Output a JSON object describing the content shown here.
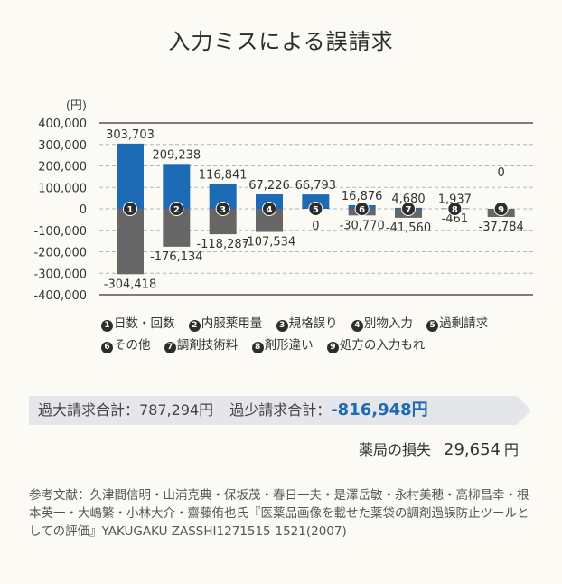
{
  "title": "入力ミスによる誤請求",
  "chart_data": {
    "type": "bar",
    "unit_label": "(円)",
    "ylim": [
      -400000,
      400000
    ],
    "y_ticks": [
      400000,
      300000,
      200000,
      100000,
      0,
      -100000,
      -200000,
      -300000,
      -400000
    ],
    "y_tick_labels": [
      "400,000",
      "300,000",
      "200,000",
      "100,000",
      "0",
      "-100,000",
      "-200,000",
      "-300,000",
      "-400,000"
    ],
    "grid": "dashed horizontal",
    "categories": [
      "1",
      "2",
      "3",
      "4",
      "5",
      "6",
      "7",
      "8",
      "9"
    ],
    "category_markers": [
      "❶",
      "❷",
      "❸",
      "❹",
      "❺",
      "❻",
      "❼",
      "❽",
      "❾"
    ],
    "series": [
      {
        "values": [
          303703,
          209238,
          116841,
          67226,
          66793,
          16876,
          4680,
          1937,
          0
        ],
        "labels": [
          "303,703",
          "209,238",
          "116,841",
          "67,226",
          "66,793",
          "16,876",
          "4,680",
          "1,937",
          "0"
        ],
        "color": "#1d6ab5"
      },
      {
        "values": [
          -304418,
          -176134,
          -118287,
          -107534,
          0,
          -30770,
          -41560,
          -461,
          -37784
        ],
        "labels": [
          "-304,418",
          "-176,134",
          "-118,287",
          "-107,534",
          "0",
          "-30,770",
          "-41,560",
          "-461",
          "-37,784"
        ],
        "color": "#666666"
      }
    ]
  },
  "legend": [
    {
      "num": "1",
      "label": "日数・回数"
    },
    {
      "num": "2",
      "label": "内服薬用量"
    },
    {
      "num": "3",
      "label": "規格誤り"
    },
    {
      "num": "4",
      "label": "別物入力"
    },
    {
      "num": "5",
      "label": "過剰請求"
    },
    {
      "num": "6",
      "label": "その他"
    },
    {
      "num": "7",
      "label": "調剤技術料"
    },
    {
      "num": "8",
      "label": "剤形違い"
    },
    {
      "num": "9",
      "label": "処方の入力もれ"
    }
  ],
  "summary": {
    "over_label": "過大請求合計：",
    "over_value": "787,294円",
    "under_label": "過少請求合計：",
    "under_value": "-816,948円",
    "loss_label": "薬局の損失",
    "loss_value": "29,654",
    "loss_unit": "円"
  },
  "reference": "参考文献：久津間信明・山浦克典・保坂茂・春日一夫・是澤岳敏・永村美穂・高柳昌幸・根本英一・大嶋繁・小林大介・齋藤侑也氏『医薬品画像を載せた薬袋の調剤過誤防止ツールとしての評価』YAKUGAKU ZASSHI1271515-1521(2007)"
}
